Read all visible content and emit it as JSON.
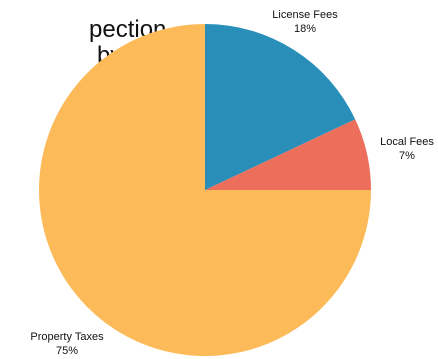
{
  "chart_data": {
    "type": "pie",
    "title_lines": [
      "pection",
      "by*:"
    ],
    "slices": [
      {
        "label": "License Fees",
        "value": 18,
        "value_label": "18%",
        "color": "#2a8fb8"
      },
      {
        "label": "Local Fees",
        "value": 7,
        "value_label": "7%",
        "color": "#ec6f5b"
      },
      {
        "label": "Property Taxes",
        "value": 75,
        "value_label": "75%",
        "color": "#fcbb58"
      }
    ],
    "start_angle": "12 o'clock",
    "direction": "clockwise"
  }
}
